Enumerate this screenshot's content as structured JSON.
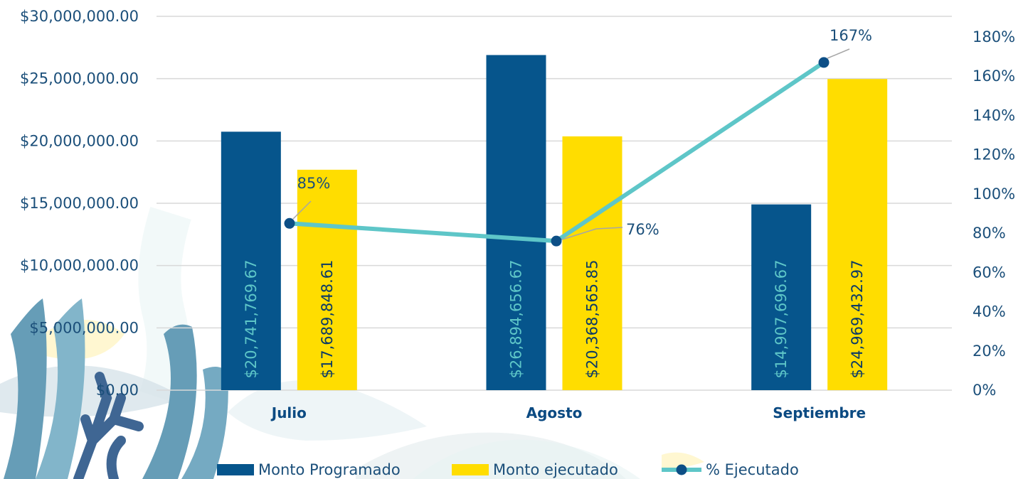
{
  "chart_data": {
    "type": "bar",
    "categories": [
      "Julio",
      "Agosto",
      "Septiembre"
    ],
    "left_axis": {
      "ylim": [
        0,
        30000000
      ],
      "ticks": [
        0,
        5000000,
        10000000,
        15000000,
        20000000,
        25000000,
        30000000
      ],
      "tick_labels": [
        "$0.00",
        "$5,000,000.00",
        "$10,000,000.00",
        "$15,000,000.00",
        "$20,000,000.00",
        "$25,000,000.00",
        "$30,000,000.00"
      ]
    },
    "right_axis": {
      "ylim": [
        0,
        1.8
      ],
      "ticks": [
        0,
        0.2,
        0.4,
        0.6,
        0.8,
        1.0,
        1.2,
        1.4,
        1.6,
        1.8
      ],
      "tick_labels": [
        "0%",
        "20%",
        "40%",
        "60%",
        "80%",
        "100%",
        "120%",
        "140%",
        "160%",
        "180%"
      ]
    },
    "grid": true,
    "legend_position": "bottom",
    "series": [
      {
        "name": "Monto Programado",
        "type": "bar",
        "axis": "left",
        "color": "#06558c",
        "label_color": "#5ec6c8",
        "values": [
          20741769.67,
          26894656.67,
          14907696.67
        ],
        "labels": [
          "$20,741,769.67",
          "$26,894,656.67",
          "$14,907,696.67"
        ]
      },
      {
        "name": "Monto ejecutado",
        "type": "bar",
        "axis": "left",
        "color": "#ffdd00",
        "label_color": "#0b3a66",
        "values": [
          17689848.61,
          20368565.85,
          24969432.97
        ],
        "labels": [
          "$17,689,848.61",
          "$20,368,565.85",
          "$24,969,432.97"
        ]
      },
      {
        "name": "% Ejecutado",
        "type": "line",
        "axis": "right",
        "color": "#5ec6c8",
        "marker_color": "#0d4f86",
        "values": [
          0.85,
          0.76,
          1.67
        ],
        "labels": [
          "85%",
          "76%",
          "167%"
        ]
      }
    ]
  }
}
